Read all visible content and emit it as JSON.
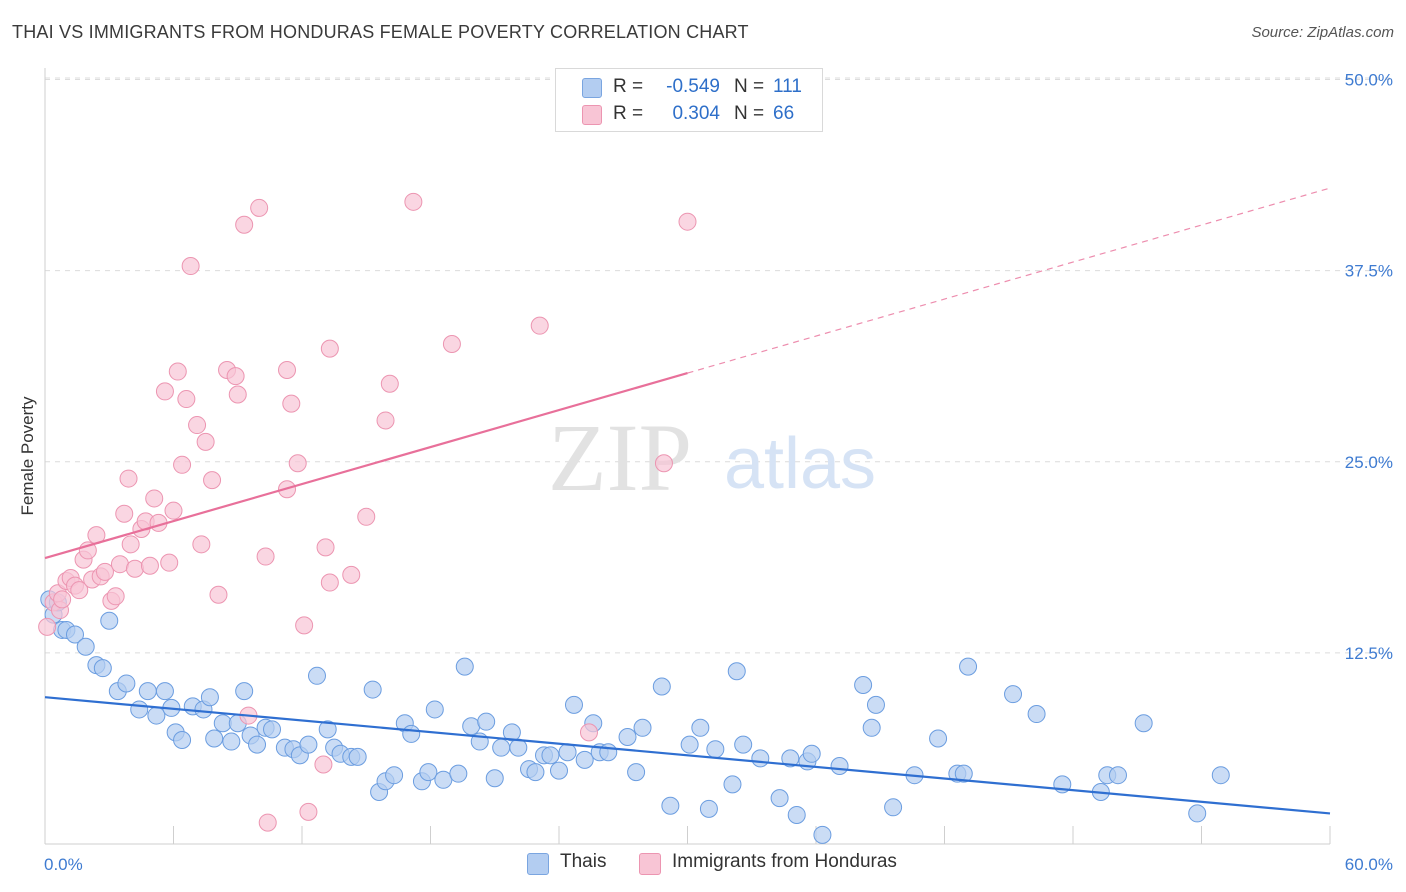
{
  "title": "THAI VS IMMIGRANTS FROM HONDURAS FEMALE POVERTY CORRELATION CHART",
  "source": "Source: ZipAtlas.com",
  "watermark": {
    "zip": "ZIP",
    "atlas": "atlas"
  },
  "legend": {
    "r_label": "R =",
    "n_label": "N =",
    "rows": [
      {
        "r": "-0.549",
        "n": "111",
        "color": "#b3cdf1"
      },
      {
        "r": "0.304",
        "n": "66",
        "color": "#f8c5d5"
      }
    ]
  },
  "colors": {
    "thais_fill": "#b3cdf1",
    "thais_stroke": "#6b9de0",
    "thais_line": "#2f6fd1",
    "honduras_fill": "#f8c5d5",
    "honduras_stroke": "#ec95b1",
    "honduras_line": "#e8709a",
    "grid": "#dcdcdc",
    "tick_text": "#3e7bd1"
  },
  "chart_data": {
    "type": "scatter",
    "title": "THAI VS IMMIGRANTS FROM HONDURAS FEMALE POVERTY CORRELATION CHART",
    "xlabel": "",
    "ylabel": "Female Poverty",
    "xlim": [
      0,
      60
    ],
    "ylim": [
      0,
      50
    ],
    "x_tick_labels": [
      "0.0%",
      "60.0%"
    ],
    "y_ticks": [
      12.5,
      25.0,
      37.5,
      50.0
    ],
    "y_tick_labels": [
      "12.5%",
      "25.0%",
      "37.5%",
      "50.0%"
    ],
    "grid": true,
    "legend_position": "top-center",
    "series": [
      {
        "name": "Thais",
        "r": -0.549,
        "n": 111,
        "trend": {
          "x": [
            0,
            60
          ],
          "y": [
            9.6,
            2.0
          ],
          "style": "solid"
        },
        "points": [
          [
            0.2,
            16.0
          ],
          [
            0.4,
            15.0
          ],
          [
            0.6,
            15.8
          ],
          [
            0.8,
            14.0
          ],
          [
            1.0,
            14.0
          ],
          [
            1.4,
            13.7
          ],
          [
            1.9,
            12.9
          ],
          [
            2.4,
            11.7
          ],
          [
            2.7,
            11.5
          ],
          [
            3.0,
            14.6
          ],
          [
            3.4,
            10.0
          ],
          [
            3.8,
            10.5
          ],
          [
            4.4,
            8.8
          ],
          [
            4.8,
            10.0
          ],
          [
            5.2,
            8.4
          ],
          [
            5.6,
            10.0
          ],
          [
            5.9,
            8.9
          ],
          [
            6.1,
            7.3
          ],
          [
            6.4,
            6.8
          ],
          [
            6.9,
            9.0
          ],
          [
            7.4,
            8.8
          ],
          [
            7.7,
            9.6
          ],
          [
            7.9,
            6.9
          ],
          [
            8.3,
            7.9
          ],
          [
            8.7,
            6.7
          ],
          [
            9.0,
            7.9
          ],
          [
            9.3,
            10.0
          ],
          [
            9.6,
            7.1
          ],
          [
            9.9,
            6.5
          ],
          [
            10.3,
            7.6
          ],
          [
            10.6,
            7.5
          ],
          [
            11.2,
            6.3
          ],
          [
            11.6,
            6.2
          ],
          [
            11.9,
            5.8
          ],
          [
            12.3,
            6.5
          ],
          [
            12.7,
            11.0
          ],
          [
            13.2,
            7.5
          ],
          [
            13.5,
            6.3
          ],
          [
            13.8,
            5.9
          ],
          [
            14.3,
            5.7
          ],
          [
            14.6,
            5.7
          ],
          [
            15.3,
            10.1
          ],
          [
            15.6,
            3.4
          ],
          [
            15.9,
            4.1
          ],
          [
            16.3,
            4.5
          ],
          [
            16.8,
            7.9
          ],
          [
            17.1,
            7.2
          ],
          [
            17.6,
            4.1
          ],
          [
            17.9,
            4.7
          ],
          [
            18.2,
            8.8
          ],
          [
            18.6,
            4.2
          ],
          [
            19.3,
            4.6
          ],
          [
            19.6,
            11.6
          ],
          [
            19.9,
            7.7
          ],
          [
            20.3,
            6.7
          ],
          [
            20.6,
            8.0
          ],
          [
            21.0,
            4.3
          ],
          [
            21.3,
            6.3
          ],
          [
            21.8,
            7.3
          ],
          [
            22.1,
            6.3
          ],
          [
            22.6,
            4.9
          ],
          [
            22.9,
            4.7
          ],
          [
            23.3,
            5.8
          ],
          [
            23.6,
            5.8
          ],
          [
            24.0,
            4.8
          ],
          [
            24.4,
            6.0
          ],
          [
            24.7,
            9.1
          ],
          [
            25.2,
            5.5
          ],
          [
            25.6,
            7.9
          ],
          [
            25.9,
            6.0
          ],
          [
            26.3,
            6.0
          ],
          [
            27.2,
            7.0
          ],
          [
            27.6,
            4.7
          ],
          [
            27.9,
            7.6
          ],
          [
            28.8,
            10.3
          ],
          [
            29.2,
            2.5
          ],
          [
            30.1,
            6.5
          ],
          [
            30.6,
            7.6
          ],
          [
            31.0,
            2.3
          ],
          [
            31.3,
            6.2
          ],
          [
            32.1,
            3.9
          ],
          [
            32.3,
            11.3
          ],
          [
            32.6,
            6.5
          ],
          [
            33.4,
            5.6
          ],
          [
            34.3,
            3.0
          ],
          [
            34.8,
            5.6
          ],
          [
            35.1,
            1.9
          ],
          [
            35.6,
            5.4
          ],
          [
            35.8,
            5.9
          ],
          [
            36.3,
            0.6
          ],
          [
            37.1,
            5.1
          ],
          [
            38.2,
            10.4
          ],
          [
            38.6,
            7.6
          ],
          [
            38.8,
            9.1
          ],
          [
            39.6,
            2.4
          ],
          [
            40.6,
            4.5
          ],
          [
            41.7,
            6.9
          ],
          [
            42.6,
            4.6
          ],
          [
            42.9,
            4.6
          ],
          [
            43.1,
            11.6
          ],
          [
            45.2,
            9.8
          ],
          [
            46.3,
            8.5
          ],
          [
            47.5,
            3.9
          ],
          [
            49.3,
            3.4
          ],
          [
            49.6,
            4.5
          ],
          [
            50.1,
            4.5
          ],
          [
            51.3,
            7.9
          ],
          [
            53.8,
            2.0
          ],
          [
            54.9,
            4.5
          ]
        ]
      },
      {
        "name": "Immigrants from Honduras",
        "r": 0.304,
        "n": 66,
        "trend": {
          "x": [
            0,
            30
          ],
          "y": [
            18.7,
            30.8
          ],
          "style": "solid",
          "extended_to": [
            60,
            42.9
          ],
          "extended_style": "dashed"
        },
        "points": [
          [
            0.1,
            14.2
          ],
          [
            0.4,
            15.8
          ],
          [
            0.6,
            16.4
          ],
          [
            0.7,
            15.3
          ],
          [
            0.8,
            16.0
          ],
          [
            1.0,
            17.2
          ],
          [
            1.2,
            17.4
          ],
          [
            1.4,
            16.9
          ],
          [
            1.6,
            16.6
          ],
          [
            1.8,
            18.6
          ],
          [
            2.0,
            19.2
          ],
          [
            2.2,
            17.3
          ],
          [
            2.4,
            20.2
          ],
          [
            2.6,
            17.5
          ],
          [
            2.8,
            17.8
          ],
          [
            3.1,
            15.9
          ],
          [
            3.3,
            16.2
          ],
          [
            3.5,
            18.3
          ],
          [
            3.7,
            21.6
          ],
          [
            3.9,
            23.9
          ],
          [
            4.0,
            19.6
          ],
          [
            4.2,
            18.0
          ],
          [
            4.5,
            20.6
          ],
          [
            4.7,
            21.1
          ],
          [
            4.9,
            18.2
          ],
          [
            5.1,
            22.6
          ],
          [
            5.3,
            21.0
          ],
          [
            5.6,
            29.6
          ],
          [
            5.8,
            18.4
          ],
          [
            6.0,
            21.8
          ],
          [
            6.2,
            30.9
          ],
          [
            6.4,
            24.8
          ],
          [
            6.6,
            29.1
          ],
          [
            6.8,
            37.8
          ],
          [
            7.1,
            27.4
          ],
          [
            7.3,
            19.6
          ],
          [
            7.5,
            26.3
          ],
          [
            7.8,
            23.8
          ],
          [
            8.1,
            16.3
          ],
          [
            8.5,
            31.0
          ],
          [
            8.9,
            30.6
          ],
          [
            9.0,
            29.4
          ],
          [
            9.3,
            40.5
          ],
          [
            9.5,
            8.4
          ],
          [
            10.0,
            41.6
          ],
          [
            10.3,
            18.8
          ],
          [
            10.4,
            1.4
          ],
          [
            11.3,
            23.2
          ],
          [
            11.3,
            31.0
          ],
          [
            11.5,
            28.8
          ],
          [
            11.8,
            24.9
          ],
          [
            12.1,
            14.3
          ],
          [
            12.3,
            2.1
          ],
          [
            13.0,
            5.2
          ],
          [
            13.1,
            19.4
          ],
          [
            13.3,
            17.1
          ],
          [
            13.3,
            32.4
          ],
          [
            14.3,
            17.6
          ],
          [
            15.0,
            21.4
          ],
          [
            15.9,
            27.7
          ],
          [
            16.1,
            30.1
          ],
          [
            17.2,
            42.0
          ],
          [
            19.0,
            32.7
          ],
          [
            23.1,
            33.9
          ],
          [
            25.4,
            7.3
          ],
          [
            28.9,
            24.9
          ],
          [
            30.0,
            40.7
          ]
        ]
      }
    ]
  },
  "bottom_legend": [
    {
      "label": "Thais",
      "color": "#b3cdf1"
    },
    {
      "label": "Immigrants from Honduras",
      "color": "#f8c5d5"
    }
  ]
}
